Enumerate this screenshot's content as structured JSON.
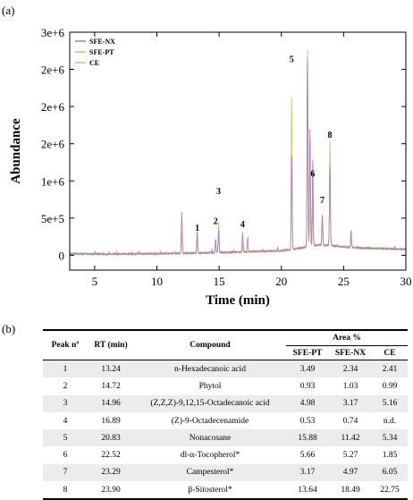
{
  "panel_a_label": "(a)",
  "panel_b_label": "(b)",
  "chart_data": {
    "type": "line",
    "xlabel": "Time (min)",
    "ylabel": "Abundance",
    "xlim": [
      3,
      30
    ],
    "ylim": [
      -200000,
      3000000
    ],
    "xticks": [
      "5",
      "10",
      "15",
      "20",
      "25",
      "30"
    ],
    "yticks": [
      "0",
      "5e+5",
      "1e+6",
      "2e+6",
      "2e+6",
      "2e+6",
      "3e+6"
    ],
    "legend_position": "top-left",
    "grid": false,
    "series": [
      {
        "name": "SFE-NX",
        "color": "#b07ab5"
      },
      {
        "name": "SFE-PT",
        "color": "#c7c36a"
      },
      {
        "name": "CE",
        "color": "#a5cf7d"
      }
    ],
    "peak_labels": [
      {
        "label": "1",
        "x": 13.24,
        "y": 330000
      },
      {
        "label": "2",
        "x": 14.72,
        "y": 420000
      },
      {
        "label": "3",
        "x": 14.96,
        "y": 820000
      },
      {
        "label": "4",
        "x": 16.89,
        "y": 380000
      },
      {
        "label": "5",
        "x": 20.83,
        "y": 2600000
      },
      {
        "label": "6",
        "x": 22.52,
        "y": 1060000
      },
      {
        "label": "7",
        "x": 23.29,
        "y": 700000
      },
      {
        "label": "8",
        "x": 23.9,
        "y": 1580000
      }
    ],
    "traces": {
      "baseline": [
        [
          3,
          20000
        ],
        [
          6,
          15000
        ],
        [
          10,
          20000
        ],
        [
          15,
          35000
        ],
        [
          20,
          60000
        ],
        [
          22,
          110000
        ],
        [
          23,
          140000
        ],
        [
          24,
          130000
        ],
        [
          26,
          100000
        ],
        [
          28,
          90000
        ],
        [
          30,
          80000
        ]
      ],
      "peaks": {
        "SFE-NX": [
          [
            12.0,
            550000
          ],
          [
            13.24,
            310000
          ],
          [
            14.72,
            180000
          ],
          [
            14.96,
            300000
          ],
          [
            16.89,
            260000
          ],
          [
            17.3,
            200000
          ],
          [
            20.83,
            1300000
          ],
          [
            22.1,
            2650000
          ],
          [
            22.3,
            1650000
          ],
          [
            22.52,
            1200000
          ],
          [
            23.29,
            430000
          ],
          [
            23.9,
            1100000
          ],
          [
            25.6,
            250000
          ]
        ],
        "SFE-PT": [
          [
            12.0,
            300000
          ],
          [
            13.24,
            230000
          ],
          [
            14.72,
            130000
          ],
          [
            14.96,
            250000
          ],
          [
            16.89,
            120000
          ],
          [
            20.83,
            2120000
          ],
          [
            22.1,
            2350000
          ],
          [
            22.3,
            1400000
          ],
          [
            22.52,
            850000
          ],
          [
            23.29,
            300000
          ],
          [
            23.9,
            1220000
          ],
          [
            25.6,
            120000
          ]
        ],
        "CE": [
          [
            12.0,
            250000
          ],
          [
            13.24,
            260000
          ],
          [
            14.72,
            120000
          ],
          [
            14.96,
            420000
          ],
          [
            16.89,
            90000
          ],
          [
            20.83,
            1050000
          ],
          [
            22.1,
            2750000
          ],
          [
            22.3,
            1500000
          ],
          [
            22.52,
            500000
          ],
          [
            23.29,
            320000
          ],
          [
            23.9,
            1450000
          ],
          [
            25.6,
            120000
          ]
        ]
      }
    }
  },
  "table": {
    "headers": {
      "peak": "Peak nº",
      "rt": "RT (min)",
      "compound": "Compound",
      "area": "Area %",
      "sfe_pt": "SFE-PT",
      "sfe_nx": "SFE-NX",
      "ce": "CE"
    },
    "rows": [
      [
        "1",
        "13.24",
        "n-Hexadecanoic acid",
        "3.49",
        "2.34",
        "2.41"
      ],
      [
        "2",
        "14.72",
        "Phytol",
        "0.93",
        "1.03",
        "0.99"
      ],
      [
        "3",
        "14.96",
        "(Z,Z,Z)-9,12,15-Octadecanoic acid",
        "4.98",
        "3.17",
        "5.16"
      ],
      [
        "4",
        "16.89",
        "(Z)-9-Octadecenamide",
        "0.53",
        "0.74",
        "n.d."
      ],
      [
        "5",
        "20.83",
        "Nonacosane",
        "15.88",
        "11.42",
        "5.34"
      ],
      [
        "6",
        "22.52",
        "dl-α-Tocopherol*",
        "5.66",
        "5.27",
        "1.85"
      ],
      [
        "7",
        "23.29",
        "Campesterol*",
        "3.17",
        "4.97",
        "6.05"
      ],
      [
        "8",
        "23.90",
        "β-Sitosterol*",
        "13.64",
        "18.49",
        "22.75"
      ]
    ]
  }
}
